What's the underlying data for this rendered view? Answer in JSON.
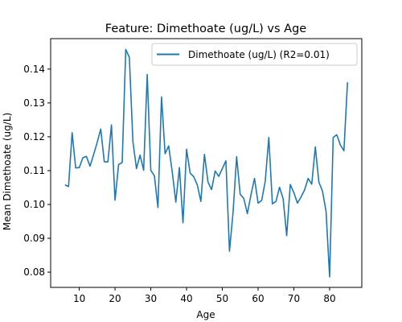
{
  "chart_data": {
    "type": "line",
    "title": "Feature: Dimethoate (ug/L) vs Age",
    "xlabel": "Age",
    "ylabel": "Mean Dimethoate (ug/L)",
    "xlim": [
      2,
      89
    ],
    "ylim": [
      0.0755,
      0.149
    ],
    "xticks": [
      10,
      20,
      30,
      40,
      50,
      60,
      70,
      80
    ],
    "yticks": [
      0.08,
      0.09,
      0.1,
      0.11,
      0.12,
      0.13,
      0.14
    ],
    "ytick_labels": [
      "0.08",
      "0.09",
      "0.10",
      "0.11",
      "0.12",
      "0.13",
      "0.14"
    ],
    "grid": false,
    "legend_position": "top-right",
    "series": [
      {
        "name": "Dimethoate (ug/L) (R2=0.01)",
        "color": "#1f77b4",
        "x": [
          6,
          7,
          8,
          9,
          10,
          11,
          12,
          13,
          14,
          15,
          16,
          17,
          18,
          19,
          20,
          21,
          22,
          23,
          24,
          25,
          26,
          27,
          28,
          29,
          30,
          31,
          32,
          33,
          34,
          35,
          36,
          37,
          38,
          39,
          40,
          41,
          42,
          43,
          44,
          45,
          46,
          47,
          48,
          49,
          50,
          51,
          52,
          53,
          54,
          55,
          56,
          57,
          58,
          59,
          60,
          61,
          62,
          63,
          64,
          65,
          66,
          67,
          68,
          69,
          70,
          71,
          72,
          73,
          74,
          75,
          76,
          77,
          78,
          79,
          80,
          81,
          82,
          83,
          84,
          85
        ],
        "y": [
          0.1058,
          0.1053,
          0.1212,
          0.1108,
          0.1109,
          0.1138,
          0.1142,
          0.1113,
          0.1147,
          0.1183,
          0.1223,
          0.1126,
          0.1126,
          0.1235,
          0.1013,
          0.1118,
          0.1124,
          0.1458,
          0.1435,
          0.1186,
          0.1106,
          0.1146,
          0.1101,
          0.1384,
          0.1101,
          0.1085,
          0.0991,
          0.1318,
          0.115,
          0.1173,
          0.1096,
          0.1007,
          0.1109,
          0.0946,
          0.1163,
          0.1093,
          0.1082,
          0.1058,
          0.1009,
          0.1148,
          0.1066,
          0.1044,
          0.1099,
          0.1083,
          0.1106,
          0.1129,
          0.0862,
          0.0976,
          0.1141,
          0.103,
          0.1018,
          0.0973,
          0.1028,
          0.1077,
          0.1004,
          0.1012,
          0.1069,
          0.1198,
          0.1002,
          0.1009,
          0.1051,
          0.1017,
          0.0908,
          0.1059,
          0.1035,
          0.1004,
          0.1022,
          0.1043,
          0.1077,
          0.106,
          0.117,
          0.1066,
          0.104,
          0.098,
          0.0786,
          0.1198,
          0.1206,
          0.1176,
          0.1159,
          0.1361
        ]
      }
    ]
  }
}
